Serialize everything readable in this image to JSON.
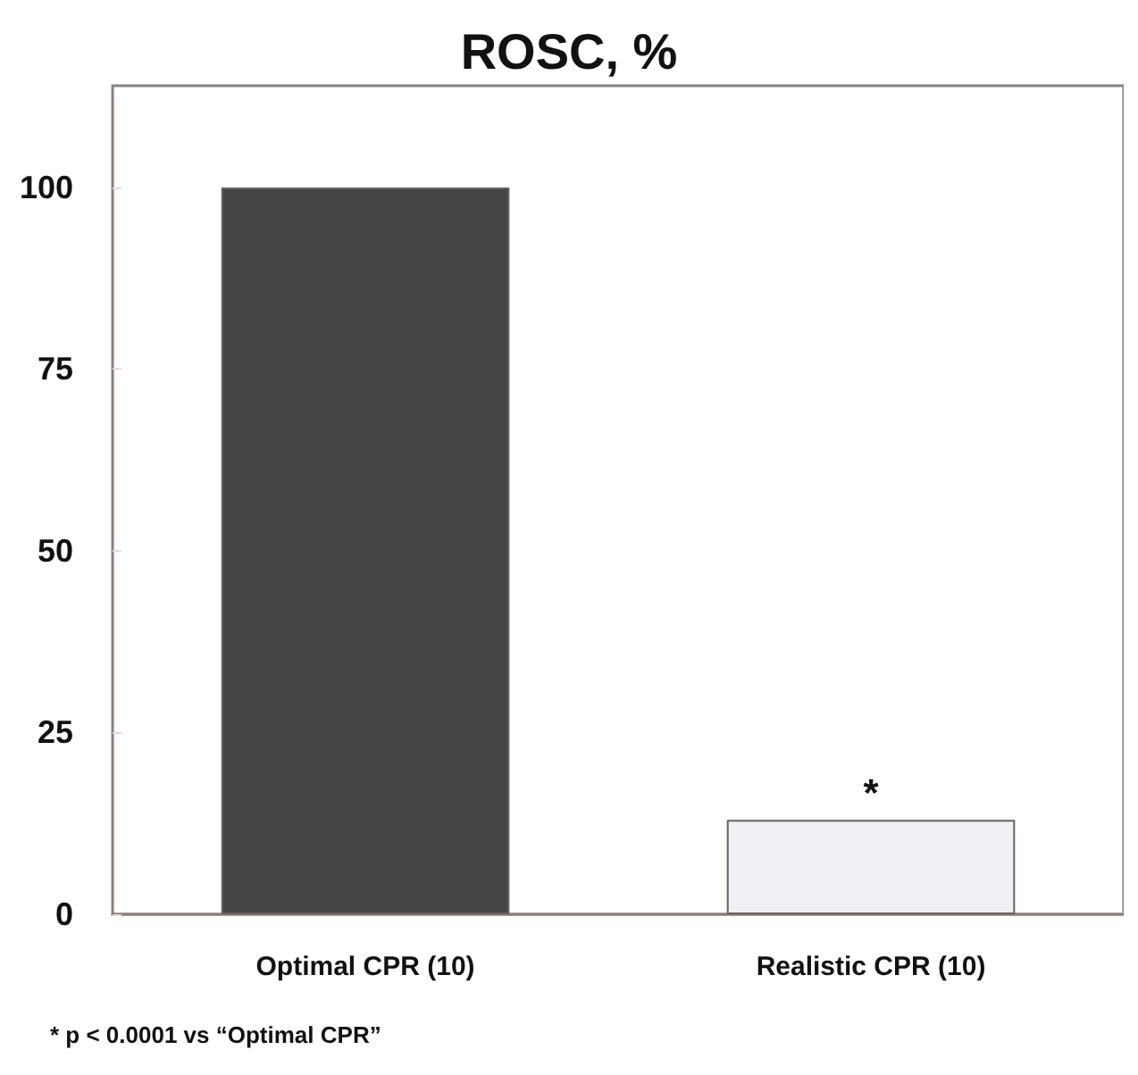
{
  "chart_data": {
    "type": "bar",
    "title": "ROSC, %",
    "categories": [
      "Optimal CPR (10)",
      "Realistic CPR (10)"
    ],
    "values": [
      100,
      13
    ],
    "colors": [
      "#444444",
      "#eef0f4"
    ],
    "ylim": [
      0,
      114
    ],
    "yticks": [
      0,
      25,
      50,
      75,
      100
    ],
    "grid": false,
    "annotations": [
      "*",
      "* p < 0.0001 vs “Optimal CPR”"
    ]
  }
}
